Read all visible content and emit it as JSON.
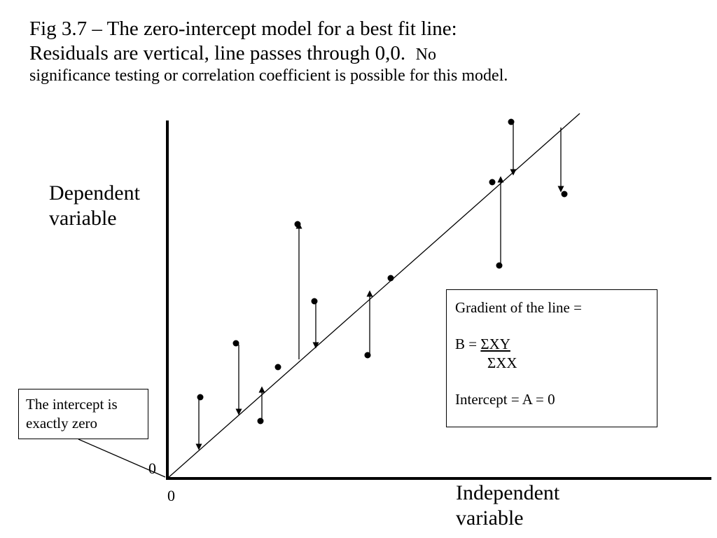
{
  "title": {
    "line1": "Fig 3.7 – The zero-intercept model for a best fit line:",
    "line2": "Residuals are vertical, line passes through 0,0.",
    "line2_tail": "No",
    "line3": "significance testing or correlation coefficient is possible for this model."
  },
  "axes": {
    "y_label_line1": "Dependent",
    "y_label_line2": "variable",
    "x_label_line1": "Independent",
    "x_label_line2": "variable",
    "y_zero": "0",
    "x_zero": "0"
  },
  "intercept_box": {
    "line1": "The intercept is",
    "line2": "exactly zero"
  },
  "gradient_box": {
    "line1": "Gradient of the line =",
    "b_prefix": "B = ",
    "numerator": "ΣXY",
    "denominator": "ΣXX",
    "intercept": "Intercept = A = 0"
  }
}
